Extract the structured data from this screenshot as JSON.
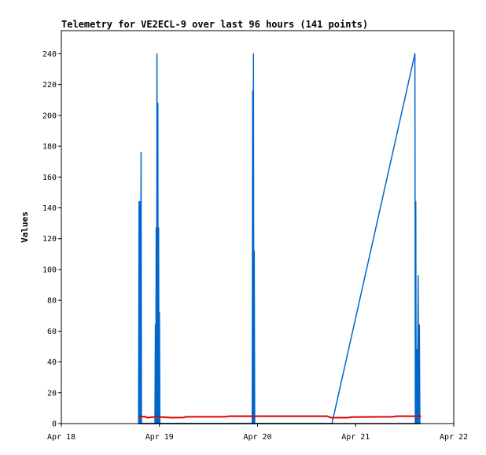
{
  "chart_data": {
    "type": "line",
    "title": "Telemetry for VE2ECL-9 over last 96 hours (141 points)",
    "xlabel": "",
    "ylabel": "Values",
    "x_ticks": [
      "Apr 18",
      "Apr 19",
      "Apr 20",
      "Apr 21",
      "Apr 22"
    ],
    "x_range_hours": [
      0,
      96
    ],
    "y_ticks": [
      0,
      20,
      40,
      60,
      80,
      100,
      120,
      140,
      160,
      180,
      200,
      220,
      240
    ],
    "ylim": [
      0,
      255
    ],
    "grid": false,
    "series": [
      {
        "color": "#0066cc",
        "points": [
          [
            18.9,
            0
          ],
          [
            19.0,
            144
          ],
          [
            19.1,
            0
          ],
          [
            19.2,
            144
          ],
          [
            19.35,
            0
          ],
          [
            19.5,
            176
          ],
          [
            19.6,
            0
          ],
          [
            22.9,
            0
          ],
          [
            23.0,
            64
          ],
          [
            23.1,
            0
          ],
          [
            23.2,
            127
          ],
          [
            23.3,
            0
          ],
          [
            23.4,
            240
          ],
          [
            23.5,
            0
          ],
          [
            23.6,
            208
          ],
          [
            23.7,
            0
          ],
          [
            23.8,
            127
          ],
          [
            23.9,
            0
          ],
          [
            24.0,
            72
          ],
          [
            24.1,
            0
          ],
          [
            46.7,
            0
          ],
          [
            46.8,
            216
          ],
          [
            46.9,
            0
          ],
          [
            47.0,
            240
          ],
          [
            47.1,
            0
          ],
          [
            47.2,
            112
          ],
          [
            47.3,
            0
          ],
          [
            66.2,
            0
          ],
          [
            86.5,
            240
          ],
          [
            86.6,
            0
          ],
          [
            86.7,
            144
          ],
          [
            86.8,
            0
          ],
          [
            87.0,
            48
          ],
          [
            87.1,
            0
          ],
          [
            87.3,
            96
          ],
          [
            87.4,
            0
          ],
          [
            87.6,
            64
          ],
          [
            87.7,
            0
          ]
        ]
      },
      {
        "color": "#dd0000",
        "points": [
          [
            18.8,
            4.5
          ],
          [
            20.5,
            4.5
          ],
          [
            21.0,
            3.8
          ],
          [
            22.5,
            4.2
          ],
          [
            23.5,
            4.8
          ],
          [
            24.5,
            4.2
          ],
          [
            27.0,
            3.8
          ],
          [
            30.0,
            4.0
          ],
          [
            30.5,
            4.4
          ],
          [
            40.0,
            4.4
          ],
          [
            41.0,
            4.8
          ],
          [
            65.0,
            4.8
          ],
          [
            66.0,
            3.8
          ],
          [
            70.0,
            3.8
          ],
          [
            71.0,
            4.2
          ],
          [
            81.0,
            4.4
          ],
          [
            82.0,
            4.8
          ],
          [
            88.0,
            4.8
          ]
        ]
      },
      {
        "color": "#000000",
        "points": [
          [
            18.8,
            0
          ],
          [
            88.0,
            0
          ]
        ]
      }
    ]
  }
}
